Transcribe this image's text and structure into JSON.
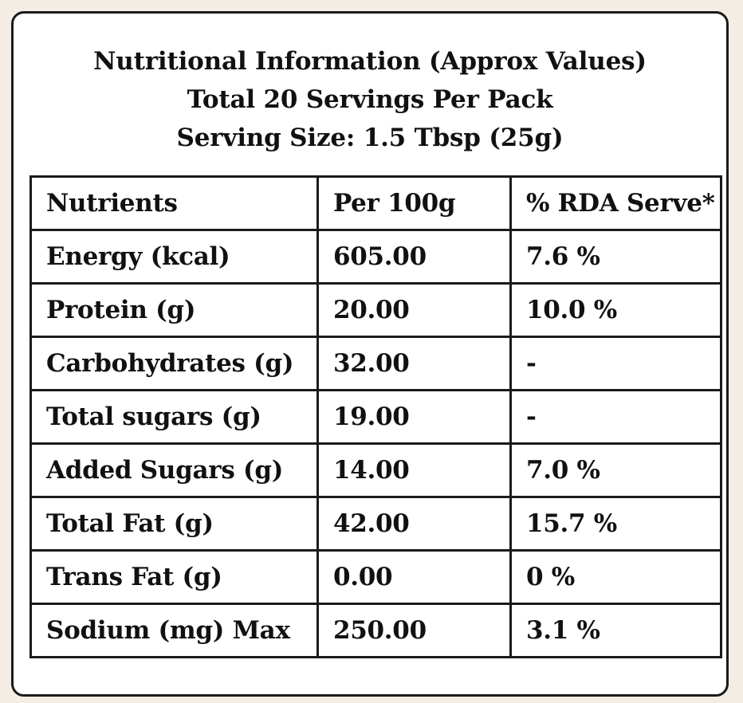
{
  "title": {
    "line1": "Nutritional Information (Approx Values)",
    "line2": "Total 20 Servings Per Pack",
    "line3": "Serving Size: 1.5 Tbsp (25g)"
  },
  "table": {
    "headers": [
      "Nutrients",
      "Per 100g",
      "% RDA Serve*"
    ],
    "rows": [
      [
        "Energy (kcal)",
        "605.00",
        "7.6 %"
      ],
      [
        "Protein (g)",
        "20.00",
        "10.0 %"
      ],
      [
        "Carbohydrates (g)",
        "32.00",
        "-"
      ],
      [
        "Total sugars (g)",
        "19.00",
        "-"
      ],
      [
        "Added Sugars (g)",
        " 14.00",
        " 7.0 %"
      ],
      [
        "Total Fat (g)",
        "42.00",
        "15.7 %"
      ],
      [
        "Trans Fat (g)",
        " 0.00",
        "0 %"
      ],
      [
        "Sodium (mg) Max",
        "250.00",
        "3.1 %"
      ]
    ]
  }
}
